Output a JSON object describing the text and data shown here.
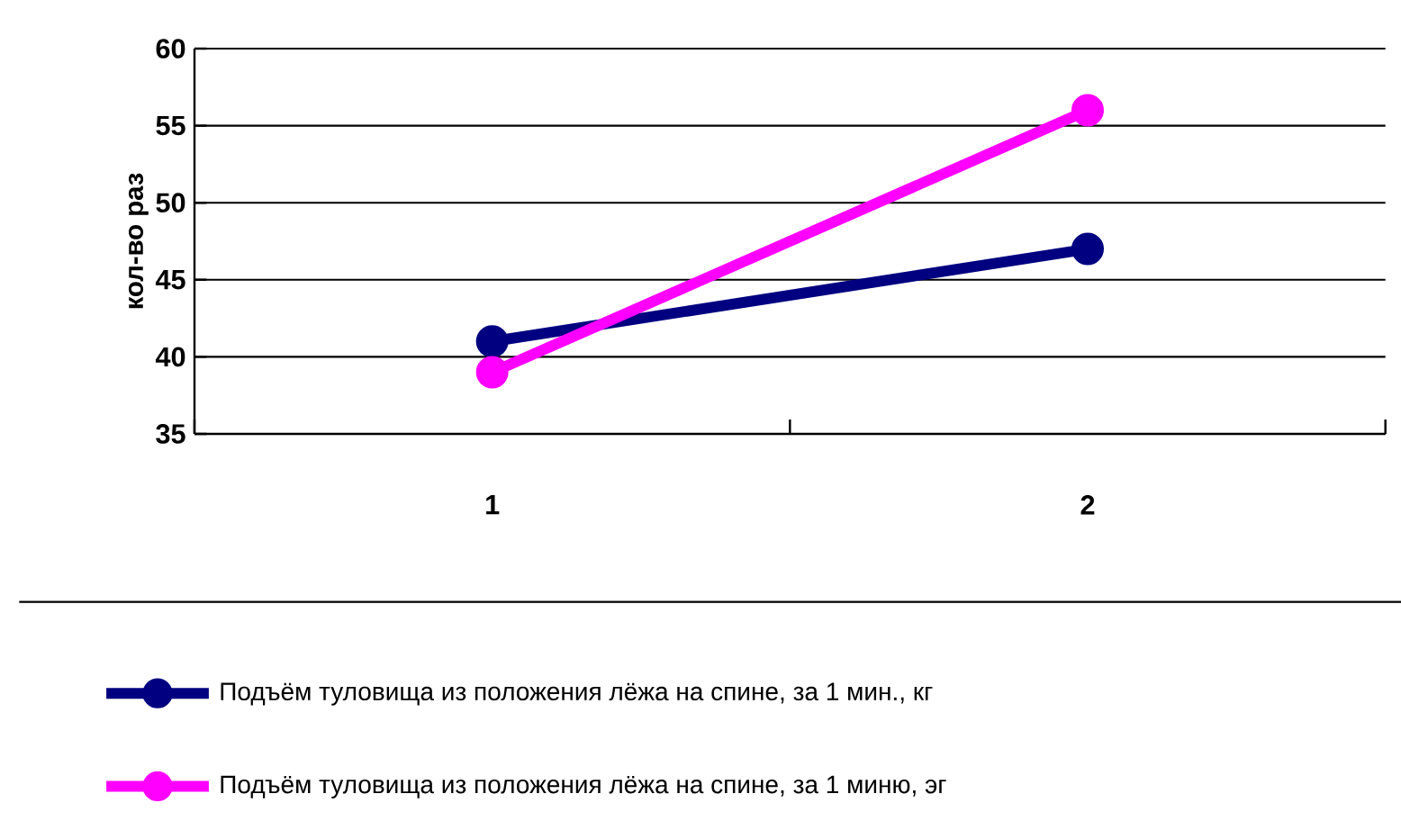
{
  "chart_data": {
    "type": "line",
    "ylabel": "кол-во раз",
    "categories": [
      "1",
      "2"
    ],
    "series": [
      {
        "name": "Подъём туловища из положения лёжа на спине, за 1 мин., кг",
        "color": "#000080",
        "values": [
          41,
          47
        ]
      },
      {
        "name": "Подъём туловища из положения лёжа на спине, за 1 миню, эг",
        "color": "#ff00ff",
        "values": [
          39,
          56
        ]
      }
    ],
    "ylim": [
      35,
      60
    ],
    "yticks": [
      35,
      40,
      45,
      50,
      55,
      60
    ],
    "grid": "y",
    "legend": "bottom",
    "marker": "circle",
    "line_style": "solid"
  }
}
